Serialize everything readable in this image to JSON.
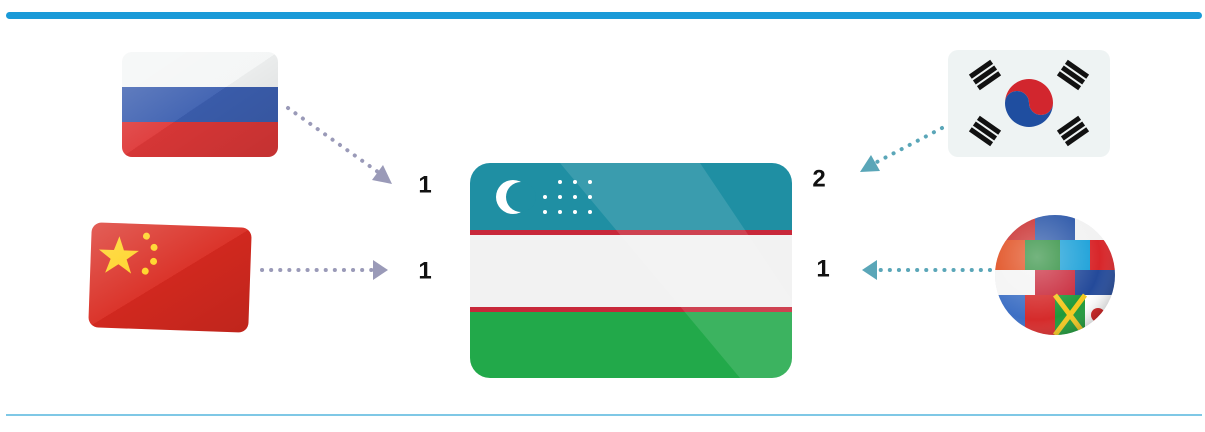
{
  "edges": [
    {
      "label": "1"
    },
    {
      "label": "1"
    },
    {
      "label": "2"
    },
    {
      "label": "1"
    }
  ]
}
